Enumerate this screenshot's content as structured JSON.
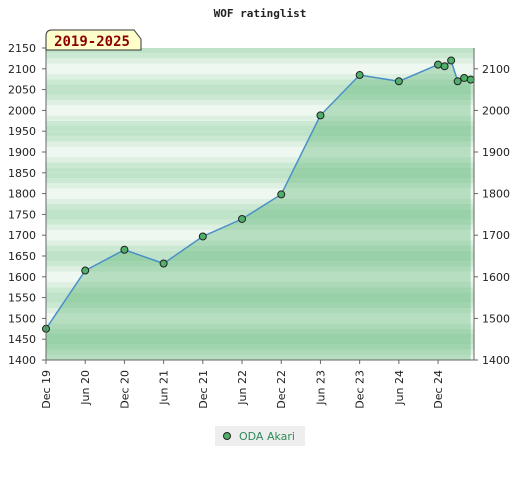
{
  "chart_data": {
    "type": "area",
    "title": "WOF ratinglist",
    "period_badge": "2019-2025",
    "x_ticks": [
      "Dec 19",
      "Jun 20",
      "Dec 20",
      "Jun 21",
      "Dec 21",
      "Jun 22",
      "Dec 22",
      "Jun 23",
      "Dec 23",
      "Jun 24",
      "Dec 24"
    ],
    "y_left_ticks": [
      "1400",
      "1450",
      "1500",
      "1550",
      "1600",
      "1650",
      "1700",
      "1750",
      "1800",
      "1850",
      "1900",
      "1950",
      "2000",
      "2050",
      "2100",
      "2150"
    ],
    "y_right_ticks": [
      "1400",
      "1500",
      "1600",
      "1700",
      "1800",
      "1900",
      "2000",
      "2100"
    ],
    "ylim": [
      1400,
      2150
    ],
    "series": [
      {
        "name": "ODA Akari",
        "color": "#2e8b57",
        "points": [
          {
            "x": 0,
            "y": 1475
          },
          {
            "x": 6,
            "y": 1615
          },
          {
            "x": 12,
            "y": 1665
          },
          {
            "x": 18,
            "y": 1632
          },
          {
            "x": 24,
            "y": 1697
          },
          {
            "x": 30,
            "y": 1739
          },
          {
            "x": 36,
            "y": 1798
          },
          {
            "x": 42,
            "y": 1988
          },
          {
            "x": 48,
            "y": 2085
          },
          {
            "x": 54,
            "y": 2070
          },
          {
            "x": 60,
            "y": 2110
          },
          {
            "x": 61,
            "y": 2106
          },
          {
            "x": 62,
            "y": 2120
          },
          {
            "x": 63,
            "y": 2070
          },
          {
            "x": 64,
            "y": 2078
          },
          {
            "x": 65,
            "y": 2074
          }
        ]
      }
    ],
    "legend": {
      "label": "ODA Akari",
      "placement": "bottom-center"
    },
    "grid": true
  }
}
